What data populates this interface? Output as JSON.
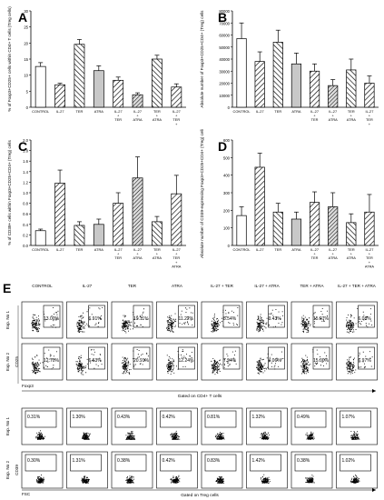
{
  "panel_letters": [
    "A",
    "B",
    "C",
    "D",
    "E"
  ],
  "categories": [
    "CONTROL",
    "IL-27",
    "TER",
    "ATRA",
    "IL-27 + TER",
    "IL-27 + ATRA",
    "TER + ATRA",
    "IL-27 + TER + ATRA"
  ],
  "chart_data": [
    {
      "panel": "A",
      "type": "bar",
      "ylabel": "% of Foxp3+CD25+ cells within CD4+ T cells (Treg cells)",
      "ylim": [
        0,
        30
      ],
      "yticks": [
        0,
        5,
        10,
        15,
        20,
        25,
        30
      ],
      "values": [
        12.7,
        7.0,
        19.6,
        11.4,
        8.4,
        3.9,
        15.0,
        6.3
      ],
      "errors": [
        1.2,
        0.5,
        1.5,
        1.5,
        1.0,
        0.6,
        1.2,
        1.0
      ]
    },
    {
      "panel": "B",
      "type": "bar",
      "ylabel": "Absolute number of Foxp3+CD25+CD4+ (Treg) cells",
      "ylim": [
        0,
        80000
      ],
      "yticks": [
        0,
        10000,
        20000,
        30000,
        40000,
        50000,
        60000,
        70000,
        80000
      ],
      "values": [
        57000,
        38000,
        54000,
        36000,
        30000,
        18000,
        31000,
        20000
      ],
      "errors": [
        13000,
        8000,
        10000,
        9000,
        6000,
        5000,
        9000,
        6000
      ]
    },
    {
      "panel": "C",
      "type": "bar",
      "ylabel": "% of CD39+ cells within Foxp3+CD25+CD4+ (Treg) cells",
      "ylim": [
        0,
        2.0
      ],
      "yticks": [
        0,
        0.2,
        0.4,
        0.6,
        0.8,
        1.0,
        1.2,
        1.4,
        1.6,
        1.8,
        2.0
      ],
      "values": [
        0.28,
        1.18,
        0.38,
        0.4,
        0.8,
        1.28,
        0.45,
        0.98
      ],
      "errors": [
        0.03,
        0.25,
        0.07,
        0.1,
        0.2,
        0.4,
        0.1,
        0.35
      ]
    },
    {
      "panel": "D",
      "type": "bar",
      "ylabel": "Absolute number of CD39-expressing Foxp3+CD25+CD4+ (Treg) cells",
      "ylim": [
        0,
        600
      ],
      "yticks": [
        0,
        100,
        200,
        300,
        400,
        500,
        600
      ],
      "values": [
        170,
        445,
        190,
        150,
        245,
        220,
        130,
        190
      ],
      "errors": [
        50,
        80,
        50,
        40,
        60,
        80,
        50,
        100
      ]
    }
  ],
  "flow": {
    "conditions": [
      "CONTROL",
      "IL-27",
      "TER",
      "ATRA",
      "IL-27 + TER",
      "IL-27 + ATRA",
      "TER + ATRA",
      "IL-27 + TER + ATRA"
    ],
    "row_labels": [
      "Exp. No 1",
      "Exp. No 2",
      "Exp. No 1",
      "Exp. No 2"
    ],
    "treg_exp1": [
      "13.00%",
      "6.91%",
      "19.11%",
      "11.22%",
      "8.54%",
      "3.43%",
      "15.07%",
      "6.08%"
    ],
    "treg_exp2": [
      "12.70%",
      "6.63%",
      "20.91%",
      "12.24%",
      "7.94%",
      "4.06%",
      "15.00%",
      "6.97%"
    ],
    "cd39_exp1": [
      "0.31%",
      "1.30%",
      "0.43%",
      "0.42%",
      "0.81%",
      "1.32%",
      "0.49%",
      "1.07%"
    ],
    "cd39_exp2": [
      "0.30%",
      "1.31%",
      "0.38%",
      "0.42%",
      "0.83%",
      "1.42%",
      "0.38%",
      "1.02%"
    ],
    "axis_labels": {
      "cd25": "CD25",
      "foxp3": "Foxp3",
      "cd39": "CD39",
      "fsc": "FSC"
    },
    "gate_captions": {
      "top": "Gated on CD4+ T cells",
      "bottom": "Gated on Treg cells"
    }
  },
  "colors": {
    "ink": "#000000",
    "grey_bar": "#c8c8c8",
    "white_bar": "#ffffff"
  }
}
